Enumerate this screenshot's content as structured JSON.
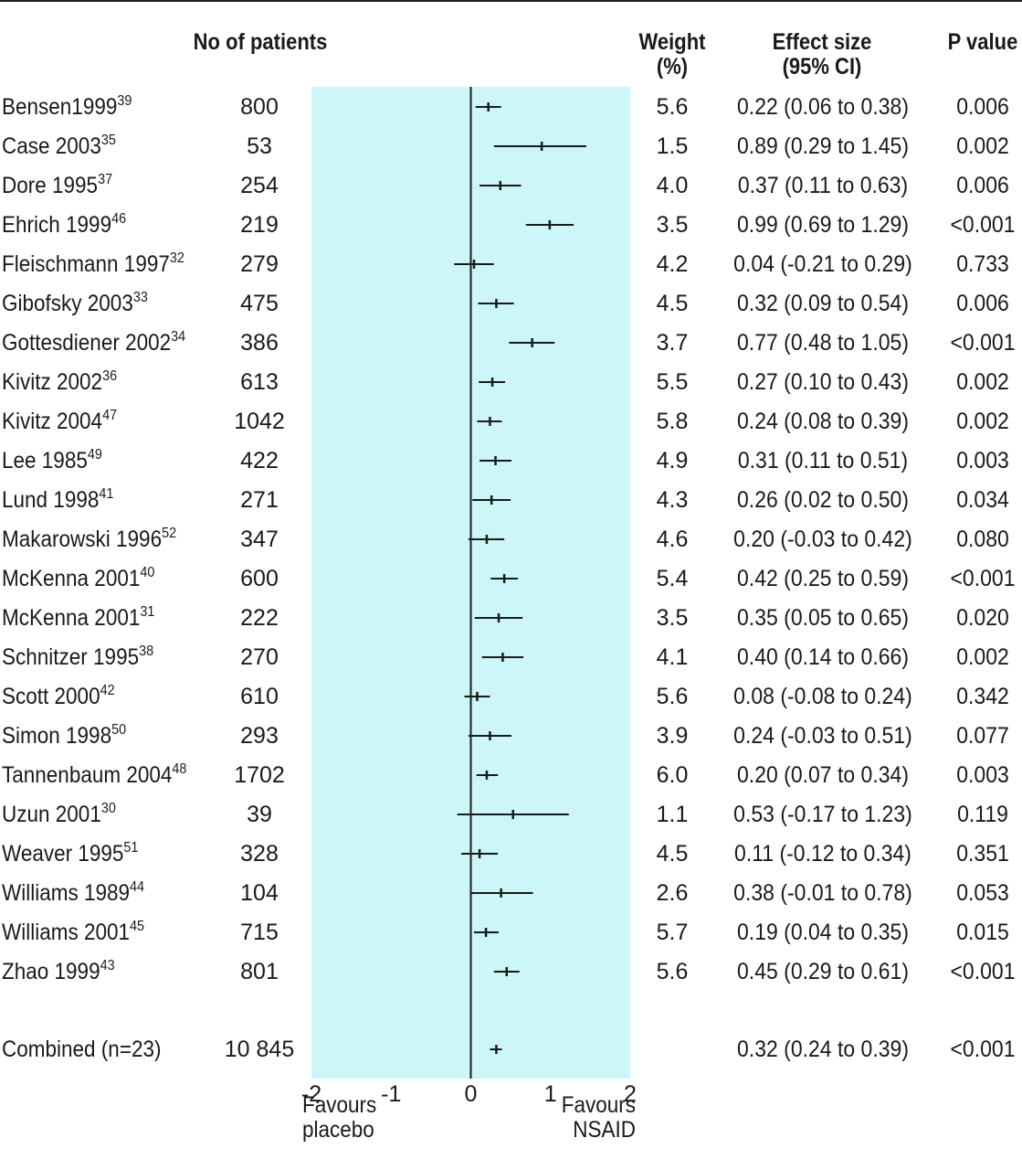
{
  "headers": {
    "patients": "No of patients",
    "weight_line1": "Weight",
    "weight_line2": "(%)",
    "effect_line1": "Effect size",
    "effect_line2": "(95% CI)",
    "pvalue": "P value"
  },
  "rows": [
    {
      "name": "Bensen1999",
      "ref": "39",
      "patients": "800",
      "weight": "5.6",
      "effect": "0.22 (0.06 to 0.38)",
      "p": "0.006"
    },
    {
      "name": "Case 2003",
      "ref": "35",
      "patients": "53",
      "weight": "1.5",
      "effect": "0.89 (0.29 to 1.45)",
      "p": "0.002"
    },
    {
      "name": "Dore 1995",
      "ref": "37",
      "patients": "254",
      "weight": "4.0",
      "effect": "0.37 (0.11 to 0.63)",
      "p": "0.006"
    },
    {
      "name": "Ehrich 1999",
      "ref": "46",
      "patients": "219",
      "weight": "3.5",
      "effect": "0.99 (0.69 to 1.29)",
      "p": "<0.001"
    },
    {
      "name": "Fleischmann 1997",
      "ref": "32",
      "patients": "279",
      "weight": "4.2",
      "effect": "0.04 (-0.21 to 0.29)",
      "p": "0.733"
    },
    {
      "name": "Gibofsky 2003",
      "ref": "33",
      "patients": "475",
      "weight": "4.5",
      "effect": "0.32 (0.09 to 0.54)",
      "p": "0.006"
    },
    {
      "name": "Gottesdiener 2002",
      "ref": "34",
      "patients": "386",
      "weight": "3.7",
      "effect": "0.77 (0.48 to 1.05)",
      "p": "<0.001"
    },
    {
      "name": "Kivitz 2002",
      "ref": "36",
      "patients": "613",
      "weight": "5.5",
      "effect": "0.27 (0.10 to 0.43)",
      "p": "0.002"
    },
    {
      "name": "Kivitz 2004",
      "ref": "47",
      "patients": "1042",
      "weight": "5.8",
      "effect": "0.24 (0.08 to 0.39)",
      "p": "0.002"
    },
    {
      "name": "Lee 1985",
      "ref": "49",
      "patients": "422",
      "weight": "4.9",
      "effect": "0.31 (0.11 to 0.51)",
      "p": "0.003"
    },
    {
      "name": "Lund 1998",
      "ref": "41",
      "patients": "271",
      "weight": "4.3",
      "effect": "0.26 (0.02 to 0.50)",
      "p": "0.034"
    },
    {
      "name": "Makarowski 1996",
      "ref": "52",
      "patients": "347",
      "weight": "4.6",
      "effect": "0.20 (-0.03 to 0.42)",
      "p": "0.080"
    },
    {
      "name": "McKenna 2001",
      "ref": "40",
      "patients": "600",
      "weight": "5.4",
      "effect": "0.42 (0.25 to 0.59)",
      "p": "<0.001"
    },
    {
      "name": "McKenna 2001",
      "ref": "31",
      "patients": "222",
      "weight": "3.5",
      "effect": "0.35 (0.05 to 0.65)",
      "p": "0.020"
    },
    {
      "name": "Schnitzer 1995",
      "ref": "38",
      "patients": "270",
      "weight": "4.1",
      "effect": "0.40 (0.14 to 0.66)",
      "p": "0.002"
    },
    {
      "name": "Scott 2000",
      "ref": "42",
      "patients": "610",
      "weight": "5.6",
      "effect": "0.08 (-0.08 to 0.24)",
      "p": "0.342"
    },
    {
      "name": "Simon 1998",
      "ref": "50",
      "patients": "293",
      "weight": "3.9",
      "effect": "0.24 (-0.03 to 0.51)",
      "p": "0.077"
    },
    {
      "name": "Tannenbaum 2004",
      "ref": "48",
      "patients": "1702",
      "weight": "6.0",
      "effect": "0.20 (0.07 to 0.34)",
      "p": "0.003"
    },
    {
      "name": "Uzun 2001",
      "ref": "30",
      "patients": "39",
      "weight": "1.1",
      "effect": "0.53 (-0.17 to 1.23)",
      "p": "0.119"
    },
    {
      "name": "Weaver 1995",
      "ref": "51",
      "patients": "328",
      "weight": "4.5",
      "effect": "0.11 (-0.12 to 0.34)",
      "p": "0.351"
    },
    {
      "name": "Williams 1989",
      "ref": "44",
      "patients": "104",
      "weight": "2.6",
      "effect": "0.38 (-0.01 to 0.78)",
      "p": "0.053"
    },
    {
      "name": "Williams 2001",
      "ref": "45",
      "patients": "715",
      "weight": "5.7",
      "effect": "0.19 (0.04 to 0.35)",
      "p": "0.015"
    },
    {
      "name": "Zhao 1999",
      "ref": "43",
      "patients": "801",
      "weight": "5.6",
      "effect": "0.45 (0.29 to 0.61)",
      "p": "<0.001"
    }
  ],
  "combined": {
    "name": "Combined (n=23)",
    "patients": "10 845",
    "effect": "0.32 (0.24 to 0.39)",
    "p": "<0.001"
  },
  "favours": {
    "left_line1": "Favours",
    "left_line2": "placebo",
    "right_line1": "Favours",
    "right_line2": "NSAID"
  },
  "colors": {
    "shade": "#ccf6f8",
    "ink": "#1a1a1a"
  },
  "chart_data": {
    "type": "forest",
    "xlim": [
      -2,
      2
    ],
    "xticks": [
      "-2",
      "-1",
      "0",
      "1",
      "2"
    ],
    "shaded_region": [
      -2,
      2
    ],
    "grid": false,
    "series": [
      {
        "study": "Bensen1999",
        "effect": 0.22,
        "lower": 0.06,
        "upper": 0.38
      },
      {
        "study": "Case 2003",
        "effect": 0.89,
        "lower": 0.29,
        "upper": 1.45
      },
      {
        "study": "Dore 1995",
        "effect": 0.37,
        "lower": 0.11,
        "upper": 0.63
      },
      {
        "study": "Ehrich 1999",
        "effect": 0.99,
        "lower": 0.69,
        "upper": 1.29
      },
      {
        "study": "Fleischmann 1997",
        "effect": 0.04,
        "lower": -0.21,
        "upper": 0.29
      },
      {
        "study": "Gibofsky 2003",
        "effect": 0.32,
        "lower": 0.09,
        "upper": 0.54
      },
      {
        "study": "Gottesdiener 2002",
        "effect": 0.77,
        "lower": 0.48,
        "upper": 1.05
      },
      {
        "study": "Kivitz 2002",
        "effect": 0.27,
        "lower": 0.1,
        "upper": 0.43
      },
      {
        "study": "Kivitz 2004",
        "effect": 0.24,
        "lower": 0.08,
        "upper": 0.39
      },
      {
        "study": "Lee 1985",
        "effect": 0.31,
        "lower": 0.11,
        "upper": 0.51
      },
      {
        "study": "Lund 1998",
        "effect": 0.26,
        "lower": 0.02,
        "upper": 0.5
      },
      {
        "study": "Makarowski 1996",
        "effect": 0.2,
        "lower": -0.03,
        "upper": 0.42
      },
      {
        "study": "McKenna 2001",
        "effect": 0.42,
        "lower": 0.25,
        "upper": 0.59
      },
      {
        "study": "McKenna 2001",
        "effect": 0.35,
        "lower": 0.05,
        "upper": 0.65
      },
      {
        "study": "Schnitzer 1995",
        "effect": 0.4,
        "lower": 0.14,
        "upper": 0.66
      },
      {
        "study": "Scott 2000",
        "effect": 0.08,
        "lower": -0.08,
        "upper": 0.24
      },
      {
        "study": "Simon 1998",
        "effect": 0.24,
        "lower": -0.03,
        "upper": 0.51
      },
      {
        "study": "Tannenbaum 2004",
        "effect": 0.2,
        "lower": 0.07,
        "upper": 0.34
      },
      {
        "study": "Uzun 2001",
        "effect": 0.53,
        "lower": -0.17,
        "upper": 1.23
      },
      {
        "study": "Weaver 1995",
        "effect": 0.11,
        "lower": -0.12,
        "upper": 0.34
      },
      {
        "study": "Williams 1989",
        "effect": 0.38,
        "lower": -0.01,
        "upper": 0.78
      },
      {
        "study": "Williams 2001",
        "effect": 0.19,
        "lower": 0.04,
        "upper": 0.35
      },
      {
        "study": "Zhao 1999",
        "effect": 0.45,
        "lower": 0.29,
        "upper": 0.61
      }
    ],
    "combined": {
      "study": "Combined (n=23)",
      "effect": 0.32,
      "lower": 0.24,
      "upper": 0.39
    }
  }
}
